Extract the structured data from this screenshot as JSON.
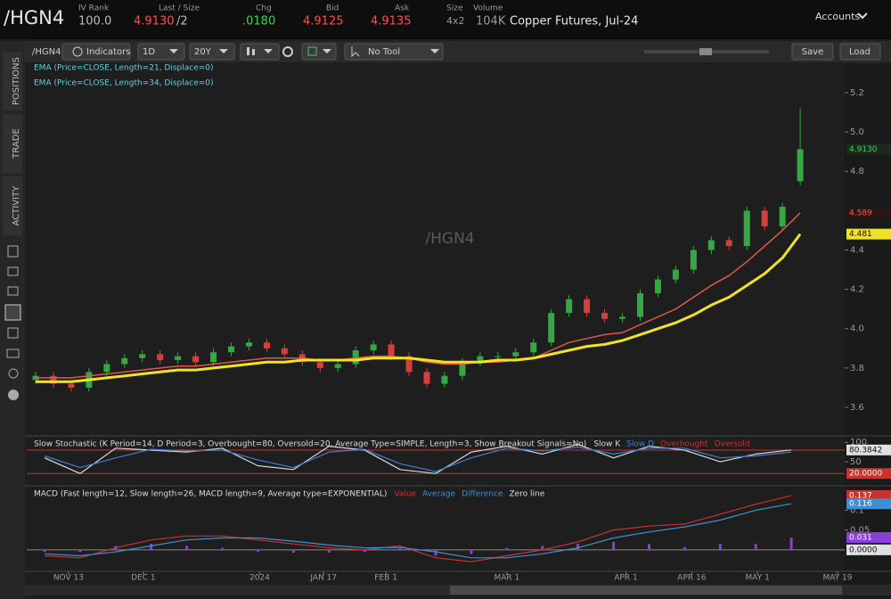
{
  "header": {
    "symbol": "/HGN4",
    "iv_rank_label": "IV Rank",
    "iv_rank": "100.0",
    "last_label": "Last / Size",
    "last": "4.9130",
    "last_size": "/2",
    "chg_label": "Chg",
    "chg": ".0180",
    "bid_label": "Bid",
    "bid": "4.9125",
    "ask_label": "Ask",
    "ask": "4.9135",
    "size_label": "Size",
    "size": "4x2",
    "volume_label": "Volume",
    "volume": "104K",
    "description": "Copper Futures, Jul-24",
    "accounts": "Accounts"
  },
  "toolbar": {
    "symbol": "/HGN4",
    "indicators": "Indicators",
    "aggregation": "1D",
    "timeframe": "20Y",
    "tool": "No Tool",
    "save": "Save",
    "load": "Load"
  },
  "sidebar": {
    "tabs": [
      "POSITIONS",
      "TRADE",
      "ACTIVITY"
    ]
  },
  "chart_data": [
    {
      "type": "candlestick",
      "title": "/HGN4",
      "up_color": "#35a845",
      "down_color": "#d6403c",
      "open": [
        3.74,
        3.76,
        3.72,
        3.7,
        3.78,
        3.82,
        3.85,
        3.87,
        3.84,
        3.86,
        3.83,
        3.88,
        3.91,
        3.93,
        3.9,
        3.87,
        3.83,
        3.8,
        3.82,
        3.89,
        3.92,
        3.86,
        3.78,
        3.72,
        3.76,
        3.83,
        3.86,
        3.86,
        3.88,
        3.93,
        4.08,
        4.15,
        4.08,
        4.05,
        4.06,
        4.18,
        4.25,
        4.3,
        4.4,
        4.45,
        4.42,
        4.6,
        4.52,
        4.75
      ],
      "high": [
        3.78,
        3.78,
        3.74,
        3.8,
        3.84,
        3.87,
        3.89,
        3.89,
        3.88,
        3.88,
        3.9,
        3.93,
        3.95,
        3.95,
        3.92,
        3.89,
        3.85,
        3.84,
        3.91,
        3.94,
        3.94,
        3.88,
        3.8,
        3.78,
        3.85,
        3.88,
        3.88,
        3.9,
        3.95,
        4.1,
        4.17,
        4.17,
        4.1,
        4.08,
        4.2,
        4.27,
        4.32,
        4.42,
        4.47,
        4.47,
        4.62,
        4.62,
        4.64,
        5.12
      ],
      "low": [
        3.72,
        3.7,
        3.68,
        3.68,
        3.76,
        3.8,
        3.83,
        3.82,
        3.82,
        3.81,
        3.81,
        3.86,
        3.89,
        3.88,
        3.85,
        3.81,
        3.78,
        3.78,
        3.8,
        3.87,
        3.84,
        3.76,
        3.7,
        3.7,
        3.74,
        3.81,
        3.84,
        3.84,
        3.86,
        3.91,
        4.06,
        4.06,
        4.03,
        4.03,
        4.04,
        4.16,
        4.23,
        4.28,
        4.38,
        4.4,
        4.4,
        4.5,
        4.5,
        4.73
      ],
      "close": [
        3.76,
        3.72,
        3.7,
        3.78,
        3.82,
        3.85,
        3.87,
        3.84,
        3.86,
        3.83,
        3.88,
        3.91,
        3.93,
        3.9,
        3.87,
        3.83,
        3.8,
        3.82,
        3.89,
        3.92,
        3.86,
        3.78,
        3.72,
        3.76,
        3.83,
        3.86,
        3.86,
        3.88,
        3.93,
        4.08,
        4.15,
        4.08,
        4.05,
        4.06,
        4.18,
        4.25,
        4.3,
        4.4,
        4.45,
        4.42,
        4.6,
        4.52,
        4.62,
        4.913
      ],
      "series": [
        {
          "name": "EMA (Price=CLOSE, Length=21, Displace=0)",
          "color": "#e0584c",
          "width": 1.5,
          "style": "line",
          "values": [
            3.75,
            3.75,
            3.75,
            3.76,
            3.77,
            3.78,
            3.79,
            3.8,
            3.81,
            3.81,
            3.82,
            3.83,
            3.84,
            3.85,
            3.85,
            3.85,
            3.84,
            3.84,
            3.85,
            3.86,
            3.86,
            3.85,
            3.83,
            3.82,
            3.82,
            3.83,
            3.83,
            3.84,
            3.85,
            3.89,
            3.93,
            3.95,
            3.97,
            3.98,
            4.02,
            4.06,
            4.1,
            4.16,
            4.22,
            4.27,
            4.34,
            4.42,
            4.5,
            4.589
          ]
        },
        {
          "name": "EMA (Price=CLOSE, Length=34, Displace=0)",
          "color": "#f2e227",
          "width": 3,
          "style": "line",
          "values": [
            3.73,
            3.73,
            3.73,
            3.74,
            3.75,
            3.76,
            3.77,
            3.78,
            3.79,
            3.79,
            3.8,
            3.81,
            3.82,
            3.83,
            3.83,
            3.84,
            3.84,
            3.84,
            3.84,
            3.85,
            3.85,
            3.85,
            3.84,
            3.83,
            3.83,
            3.83,
            3.84,
            3.84,
            3.85,
            3.87,
            3.89,
            3.91,
            3.92,
            3.94,
            3.97,
            4.0,
            4.03,
            4.07,
            4.12,
            4.16,
            4.22,
            4.28,
            4.36,
            4.481
          ]
        }
      ],
      "xlim": [
        0,
        46
      ],
      "ylim": [
        3.464,
        5.345
      ],
      "yticks": [
        5.2,
        {
          "value": 5,
          "label": "5.0"
        },
        4.8,
        4.4,
        4.2,
        {
          "value": 4,
          "label": "4.0"
        },
        3.8,
        3.6
      ],
      "value_labels": [
        {
          "value": 4.913,
          "label": "4.9130",
          "color": "#1b2a1b",
          "text_color": "#3fd05a"
        },
        {
          "value": 4.589,
          "label": "4.589",
          "color": "#2a1616",
          "text_color": "#ff5a52"
        },
        {
          "value": 4.481,
          "label": "4.481",
          "color": "#f2e227",
          "text_color": "#111111"
        }
      ]
    },
    {
      "type": "line",
      "title": "Slow Stochastic (K Period=14, D Period=3, Overbought=80, Oversold=20, Average Type=SIMPLE, Length=3, Show Breakout Signals=No)",
      "legend": [
        {
          "text": "Slow K",
          "color": "#dddddd"
        },
        {
          "text": "Slow D",
          "color": "#3d7fd0"
        },
        {
          "text": "Overbought",
          "color": "#c8332f"
        },
        {
          "text": "Oversold",
          "color": "#c8332f"
        }
      ],
      "series": [
        {
          "name": "Slow K",
          "color": "#d8d8d8",
          "width": 1.2,
          "style": "line",
          "values": [
            60,
            20,
            85,
            80,
            75,
            85,
            40,
            30,
            90,
            80,
            30,
            20,
            75,
            90,
            70,
            95,
            60,
            90,
            80,
            50,
            70,
            80.3842
          ]
        },
        {
          "name": "Slow D",
          "color": "#3d7fd0",
          "width": 1.2,
          "style": "line",
          "values": [
            65,
            35,
            60,
            82,
            78,
            80,
            55,
            35,
            75,
            82,
            45,
            25,
            60,
            85,
            78,
            88,
            70,
            85,
            85,
            60,
            65,
            75
          ]
        }
      ],
      "hlines": [
        {
          "value": 80,
          "color": "#c8332f"
        },
        {
          "value": 20,
          "color": "#c8332f"
        }
      ],
      "xlim": [
        0,
        46
      ],
      "ylim": [
        -7,
        112
      ],
      "yticks": [
        100,
        50
      ],
      "value_labels": [
        {
          "value": 80.3842,
          "label": "80.3842",
          "color": "#e0e0e0",
          "text_color": "#111111"
        },
        {
          "value": 20,
          "label": "20.0000",
          "color": "#c8332f",
          "text_color": "#ffffff"
        }
      ]
    },
    {
      "type": "line",
      "title": "MACD (Fast length=12, Slow length=26, MACD length=9, Average type=EXPONENTIAL)",
      "legend": [
        {
          "text": "Value",
          "color": "#c8332f"
        },
        {
          "text": "Average",
          "color": "#3d8fd0"
        },
        {
          "text": "Difference",
          "color": "#3d8fd0"
        },
        {
          "text": "Zero line",
          "color": "#dddddd"
        }
      ],
      "series": [
        {
          "name": "Difference",
          "color": "#8a3fd6",
          "width": 3,
          "style": "histogram",
          "values": [
            -0.005,
            -0.005,
            0.01,
            0.015,
            0.01,
            0.005,
            -0.005,
            -0.007,
            -0.007,
            -0.005,
            0.004,
            -0.015,
            -0.01,
            0.005,
            0.01,
            0.015,
            0.02,
            0.015,
            0.007,
            0.015,
            0.015,
            0.031
          ]
        },
        {
          "name": "Value",
          "color": "#c8332f",
          "width": 1.2,
          "style": "line",
          "values": [
            -0.015,
            -0.02,
            0.005,
            0.025,
            0.035,
            0.035,
            0.025,
            0.015,
            0.005,
            0,
            0.01,
            -0.02,
            -0.03,
            -0.015,
            0,
            0.02,
            0.05,
            0.06,
            0.065,
            0.09,
            0.115,
            0.137
          ]
        },
        {
          "name": "Average",
          "color": "#3d8fd0",
          "width": 1.2,
          "style": "line",
          "values": [
            -0.01,
            -0.015,
            -0.005,
            0.01,
            0.025,
            0.03,
            0.03,
            0.022,
            0.012,
            0.005,
            0.006,
            -0.005,
            -0.02,
            -0.02,
            -0.01,
            0.005,
            0.03,
            0.045,
            0.058,
            0.075,
            0.1,
            0.116
          ]
        }
      ],
      "hlines": [
        {
          "value": 0,
          "color": "#8a8a8a"
        }
      ],
      "xlim": [
        0,
        46
      ],
      "ylim": [
        -0.052,
        0.157
      ],
      "yticks": [
        0.1,
        0.05
      ],
      "xticks": [
        {
          "value": 2.35,
          "label": "NOV 13"
        },
        {
          "value": 6.56,
          "label": "DEC 1"
        },
        {
          "value": 13.1,
          "label": "2024"
        },
        {
          "value": 16.7,
          "label": "JAN 17"
        },
        {
          "value": 20.2,
          "label": "FEB 1"
        },
        {
          "value": 27.0,
          "label": "MAR 1"
        },
        {
          "value": 33.7,
          "label": "APR 1"
        },
        {
          "value": 37.4,
          "label": "APR 16"
        },
        {
          "value": 41.1,
          "label": "MAY 1"
        },
        {
          "value": 45.6,
          "label": "MAY 19"
        }
      ],
      "value_labels": [
        {
          "value": 0.137,
          "label": "0.137",
          "color": "#c8332f",
          "text_color": "#ffffff"
        },
        {
          "value": 0.116,
          "label": "0.116",
          "color": "#3d8fd0",
          "text_color": "#ffffff"
        },
        {
          "value": 0.031,
          "label": "0.031",
          "color": "#8a3fd6",
          "text_color": "#ffffff"
        },
        {
          "value": 0,
          "label": "0.0000",
          "color": "#e0e0e0",
          "text_color": "#111111"
        }
      ]
    }
  ]
}
